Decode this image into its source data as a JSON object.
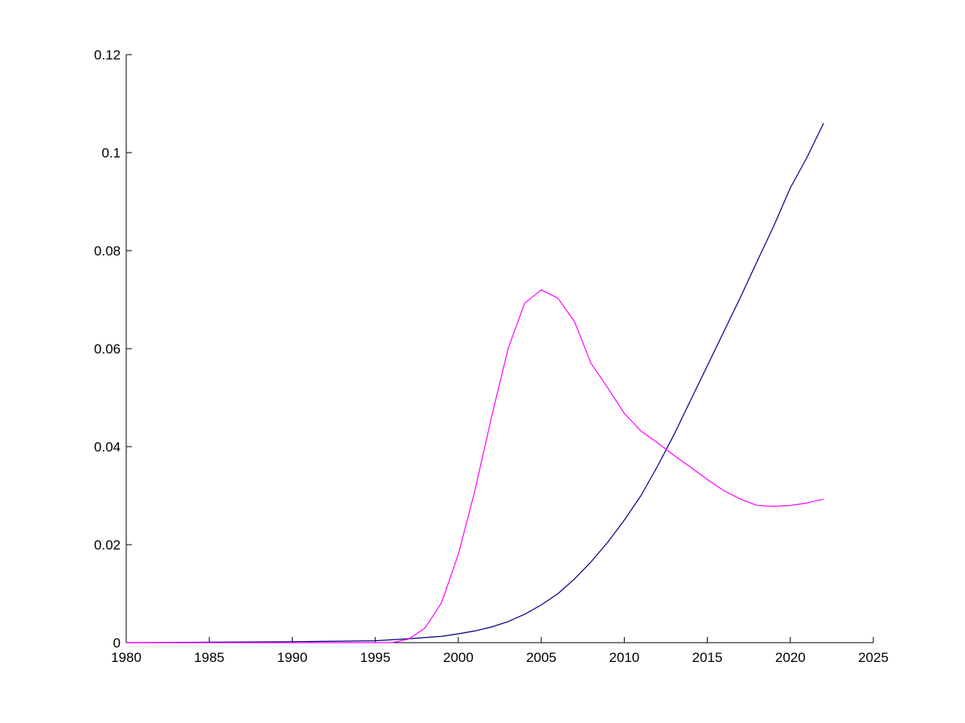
{
  "chart_data": {
    "type": "line",
    "title": "",
    "xlabel": "",
    "ylabel": "",
    "xlim": [
      1980,
      2025
    ],
    "ylim": [
      0,
      0.12
    ],
    "grid": false,
    "legend": "none",
    "x_ticks": [
      1980,
      1985,
      1990,
      1995,
      2000,
      2005,
      2010,
      2015,
      2020,
      2025
    ],
    "x_tick_labels": [
      "1980",
      "1985",
      "1990",
      "1995",
      "2000",
      "2005",
      "2010",
      "2015",
      "2020",
      "2025"
    ],
    "y_ticks": [
      0,
      0.02,
      0.04,
      0.06,
      0.08,
      0.1,
      0.12
    ],
    "y_tick_labels": [
      "0",
      "0.02",
      "0.04",
      "0.06",
      "0.08",
      "0.1",
      "0.12"
    ],
    "series": [
      {
        "color": "#000080",
        "x": [
          1980,
          1985,
          1990,
          1995,
          1997,
          1999,
          2000,
          2001,
          2002,
          2003,
          2004,
          2005,
          2006,
          2007,
          2008,
          2009,
          2010,
          2011,
          2012,
          2013,
          2014,
          2015,
          2016,
          2017,
          2018,
          2019,
          2020,
          2021,
          2022
        ],
        "values": [
          0,
          0.0001,
          0.0002,
          0.0004,
          0.0008,
          0.0013,
          0.0018,
          0.0024,
          0.0032,
          0.0043,
          0.0058,
          0.0077,
          0.01,
          0.013,
          0.0165,
          0.0205,
          0.025,
          0.03,
          0.036,
          0.0425,
          0.0495,
          0.0565,
          0.0635,
          0.0705,
          0.0778,
          0.085,
          0.0928,
          0.099,
          0.106
        ]
      },
      {
        "color": "#ff00ff",
        "x": [
          1980,
          1996,
          1997,
          1998,
          1999,
          2000,
          2001,
          2002,
          2003,
          2004,
          2005,
          2006,
          2007,
          2008,
          2009,
          2010,
          2011,
          2012,
          2013,
          2014,
          2015,
          2016,
          2017,
          2018,
          2019,
          2020,
          2021,
          2022
        ],
        "values": [
          0,
          0,
          0.0007,
          0.003,
          0.0082,
          0.018,
          0.031,
          0.046,
          0.06,
          0.0693,
          0.072,
          0.0703,
          0.0655,
          0.057,
          0.052,
          0.0468,
          0.0432,
          0.0408,
          0.0382,
          0.0358,
          0.0333,
          0.031,
          0.0293,
          0.028,
          0.0278,
          0.028,
          0.0285,
          0.0293
        ]
      }
    ]
  }
}
